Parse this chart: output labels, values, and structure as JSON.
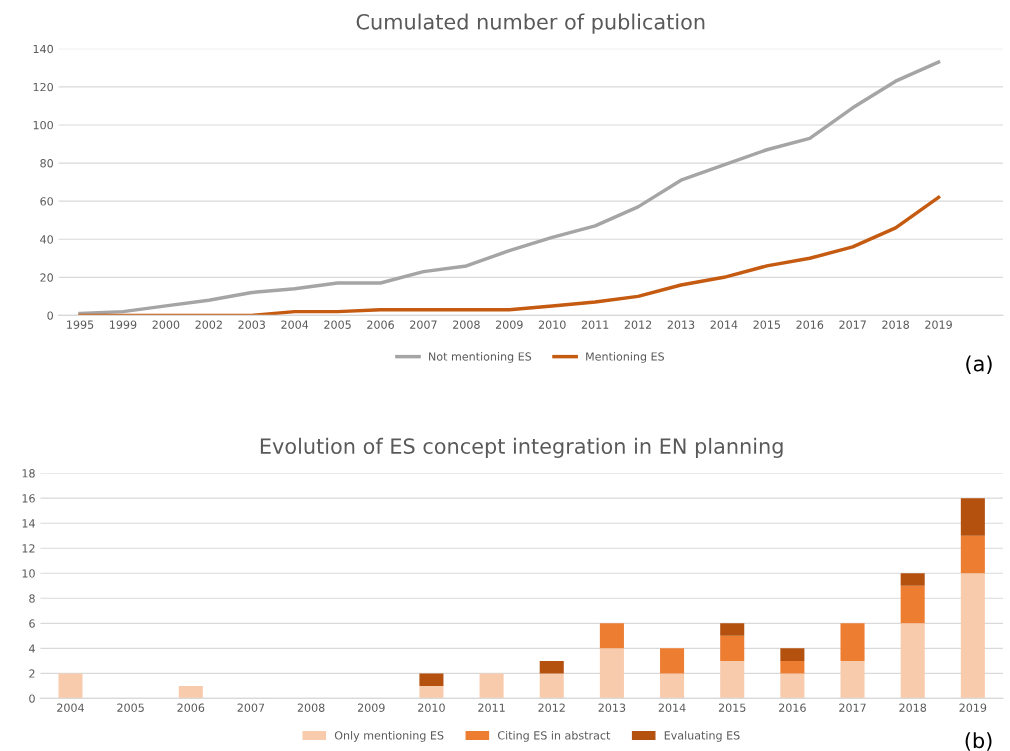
{
  "chart_data": [
    {
      "type": "line",
      "title": "Cumulated number of publication",
      "categories": [
        "1995",
        "1999",
        "2000",
        "2002",
        "2003",
        "2004",
        "2005",
        "2006",
        "2007",
        "2008",
        "2009",
        "2010",
        "2011",
        "2012",
        "2013",
        "2014",
        "2015",
        "2016",
        "2017",
        "2018",
        "2019",
        null
      ],
      "series": [
        {
          "name": "Not mentioning ES",
          "color": "#a5a5a5",
          "values": [
            1,
            2,
            5,
            8,
            12,
            14,
            17,
            17,
            23,
            26,
            34,
            41,
            47,
            57,
            71,
            79,
            87,
            93,
            109,
            123,
            133,
            null
          ]
        },
        {
          "name": "Mentioning ES",
          "color": "#c55a11",
          "values": [
            0,
            0,
            0,
            0,
            0,
            2,
            2,
            3,
            3,
            3,
            3,
            5,
            7,
            10,
            16,
            20,
            26,
            30,
            36,
            46,
            62,
            null
          ]
        }
      ],
      "ylim": [
        0,
        140
      ],
      "yticks": [
        0,
        20,
        40,
        60,
        80,
        100,
        120,
        140
      ],
      "grid": "y",
      "legend": "bottom",
      "annotations": [
        "(a)"
      ]
    },
    {
      "type": "bar",
      "stacked": true,
      "title": "Evolution of ES concept integration in EN planning",
      "categories": [
        "2004",
        "2005",
        "2006",
        "2007",
        "2008",
        "2009",
        "2010",
        "2011",
        "2012",
        "2013",
        "2014",
        "2015",
        "2016",
        "2017",
        "2018",
        "2019"
      ],
      "series": [
        {
          "name": "Only mentioning ES",
          "color": "#f8cbad",
          "values": [
            2,
            0,
            1,
            0,
            0,
            0,
            1,
            2,
            2,
            4,
            2,
            3,
            2,
            3,
            6,
            10
          ]
        },
        {
          "name": "Citing ES in abstract",
          "color": "#ed7d31",
          "values": [
            0,
            0,
            0,
            0,
            0,
            0,
            0,
            0,
            0,
            2,
            2,
            2,
            1,
            3,
            3,
            3
          ]
        },
        {
          "name": "Evaluating ES",
          "color": "#b4510f",
          "values": [
            0,
            0,
            0,
            0,
            0,
            0,
            1,
            0,
            1,
            0,
            0,
            1,
            1,
            0,
            1,
            3
          ]
        }
      ],
      "ylim": [
        0,
        18
      ],
      "yticks": [
        0,
        2,
        4,
        6,
        8,
        10,
        12,
        14,
        16,
        18
      ],
      "grid": "y",
      "legend": "bottom",
      "annotations": [
        "(b)"
      ]
    }
  ]
}
